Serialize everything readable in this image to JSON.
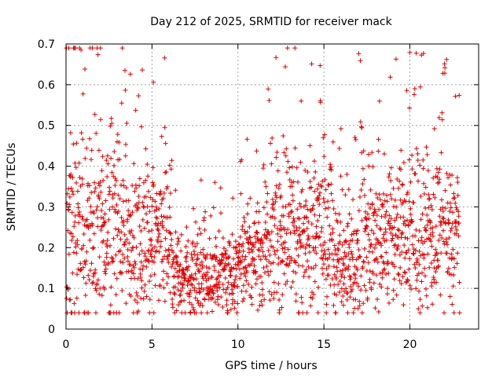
{
  "chart_data": {
    "type": "scatter",
    "title": "Day 212 of 2025, SRMTID for receiver mack",
    "xlabel": "GPS time / hours",
    "ylabel": "SRMTID / TECUs",
    "xlim": [
      0,
      24
    ],
    "ylim": [
      0,
      0.7
    ],
    "xticks": [
      0,
      5,
      10,
      15,
      20
    ],
    "xtick_labels": [
      "0",
      "5",
      "10",
      "15",
      "20"
    ],
    "yticks": [
      0,
      0.1,
      0.2,
      0.3,
      0.4,
      0.5,
      0.6,
      0.7
    ],
    "ytick_labels": [
      "0",
      "0.1",
      "0.2",
      "0.3",
      "0.4",
      "0.5",
      "0.6",
      "0.7"
    ],
    "grid": true,
    "marker": "+",
    "color": "#e00000",
    "series": [
      {
        "name": "SRMTID",
        "x": [
          0.05,
          0.1,
          0.15,
          0.2,
          0.25,
          0.3,
          0.35,
          0.4,
          0.45,
          0.5,
          0.55,
          0.6,
          0.65,
          0.7,
          0.75,
          0.8,
          0.85,
          0.9,
          0.95,
          1.0,
          1.05,
          1.1,
          1.15,
          1.2,
          1.25,
          1.3,
          1.35,
          1.4,
          1.45,
          1.5,
          1.55,
          1.6,
          1.65,
          1.7,
          1.75,
          1.8,
          1.85,
          1.9,
          1.95,
          2.0,
          2.05,
          2.1,
          2.15,
          2.2,
          2.25,
          2.3,
          2.35,
          2.4,
          2.45,
          2.5,
          2.55,
          2.6,
          2.65,
          2.7,
          2.75,
          2.8,
          2.85,
          2.9,
          2.95,
          3.0,
          3.05,
          3.1,
          3.15,
          3.2,
          3.25,
          3.3,
          3.35,
          3.4,
          3.45,
          3.5,
          3.55,
          3.6,
          3.65,
          3.7,
          3.75,
          3.8,
          3.85,
          3.9,
          3.95,
          4.0,
          4.05,
          4.1,
          4.15,
          4.2,
          4.25,
          4.3,
          4.35,
          4.4,
          4.45,
          4.5,
          4.55,
          4.6,
          4.65,
          4.7,
          4.75,
          4.8,
          4.85,
          4.9,
          4.95,
          5.0,
          5.05,
          5.1,
          5.15,
          5.2,
          5.25,
          5.3,
          5.35,
          5.4,
          5.45,
          5.5,
          5.55,
          5.6,
          5.65,
          5.7,
          5.75,
          5.8,
          5.85,
          5.9,
          5.95,
          6.0,
          6.05,
          6.1,
          6.15,
          6.2,
          6.25,
          6.3,
          6.35,
          6.4,
          6.45,
          6.5,
          6.55,
          6.6,
          6.65,
          6.7,
          6.75,
          6.8,
          6.85,
          6.9,
          6.95,
          7.0,
          7.05,
          7.1,
          7.15,
          7.2,
          7.25,
          7.3,
          7.35,
          7.4,
          7.45,
          7.5,
          7.55,
          7.6,
          7.65,
          7.7,
          7.75,
          7.8,
          7.85,
          7.9,
          7.95,
          8.0,
          8.05,
          8.1,
          8.15,
          8.2,
          8.25,
          8.3,
          8.35,
          8.4,
          8.45,
          8.5,
          8.55,
          8.6,
          8.65,
          8.7,
          8.75,
          8.8,
          8.85,
          8.9,
          8.95,
          9.0,
          9.05,
          9.1,
          9.15,
          9.2,
          9.25,
          9.3,
          9.35,
          9.4,
          9.45,
          9.5,
          9.55,
          9.6,
          9.65,
          9.7,
          9.75,
          9.8,
          9.85,
          9.9,
          9.95,
          10.0,
          10.05,
          10.1,
          10.15,
          10.2,
          10.25,
          10.3,
          10.35,
          10.4,
          10.45,
          10.5,
          10.55,
          10.6,
          10.65,
          10.7,
          10.75,
          10.8,
          10.85,
          10.9,
          10.95,
          11.0,
          11.05,
          11.1,
          11.15,
          11.2,
          11.25,
          11.3,
          11.35,
          11.4,
          11.45,
          11.5,
          11.55,
          11.6,
          11.65,
          11.7,
          11.75,
          11.8,
          11.85,
          11.9,
          11.95,
          12.0,
          12.05,
          12.1,
          12.15,
          12.2,
          12.25,
          12.3,
          12.35,
          12.4,
          12.45,
          12.5,
          12.55,
          12.6,
          12.65,
          12.7,
          12.75,
          12.8,
          12.85,
          12.9,
          12.95,
          13.0,
          13.05,
          13.1,
          13.15,
          13.2,
          13.25,
          13.3,
          13.35,
          13.4,
          13.45,
          13.5,
          13.55,
          13.6,
          13.65,
          13.7,
          13.75,
          13.8,
          13.85,
          13.9,
          13.95,
          14.0,
          14.05,
          14.1,
          14.15,
          14.2,
          14.25,
          14.3,
          14.35,
          14.4,
          14.45,
          14.5,
          14.55,
          14.6,
          14.65,
          14.7,
          14.75,
          14.8,
          14.85,
          14.9,
          14.95,
          15.0,
          15.05,
          15.1,
          15.15,
          15.2,
          15.25,
          15.3,
          15.35,
          15.4,
          15.45,
          15.5,
          15.55,
          15.6,
          15.65,
          15.7,
          15.75,
          15.8,
          15.85,
          15.9,
          15.95,
          16.0,
          16.05,
          16.1,
          16.15,
          16.2,
          16.25,
          16.3,
          16.35,
          16.4,
          16.45,
          16.5,
          16.55,
          16.6,
          16.65,
          16.7,
          16.75,
          16.8,
          16.85,
          16.9,
          16.95,
          17.0,
          17.05,
          17.1,
          17.15,
          17.2,
          17.25,
          17.3,
          17.35,
          17.4,
          17.45,
          17.5,
          17.55,
          17.6,
          17.65,
          17.7,
          17.75,
          17.8,
          17.85,
          17.9,
          17.95,
          18.0,
          18.05,
          18.1,
          18.15,
          18.2,
          18.25,
          18.3,
          18.35,
          18.4,
          18.45,
          18.5,
          18.55,
          18.6,
          18.65,
          18.7,
          18.75,
          18.8,
          18.85,
          18.9,
          18.95,
          19.0,
          19.05,
          19.1,
          19.15,
          19.2,
          19.25,
          19.3,
          19.35,
          19.4,
          19.45,
          19.5,
          19.55,
          19.6,
          19.65,
          19.7,
          19.75,
          19.8,
          19.85,
          19.9,
          19.95,
          20.0,
          20.05,
          20.1,
          20.15,
          20.2,
          20.25,
          20.3,
          20.35,
          20.4,
          20.45,
          20.5,
          20.55,
          20.6,
          20.65,
          20.7,
          20.75,
          20.8,
          20.85,
          20.9,
          20.95,
          21.0,
          21.05,
          21.1,
          21.15,
          21.2,
          21.25,
          21.3,
          21.35,
          21.4,
          21.45,
          21.5,
          21.55,
          21.6,
          21.65,
          21.7,
          21.75,
          21.8,
          21.85,
          21.9,
          21.95,
          22.0,
          22.05,
          22.1,
          22.15,
          22.2,
          22.25,
          22.3,
          22.35,
          22.4,
          22.45,
          22.5,
          22.55,
          22.6,
          22.65,
          22.7,
          22.75,
          22.8,
          0.12,
          0.22,
          0.3,
          0.45,
          0.58,
          0.62,
          0.5,
          0.47,
          0.4,
          0.38,
          0.44,
          0.33,
          0.52,
          0.65,
          0.7,
          0.68,
          0.6,
          0.55,
          0.5,
          0.43,
          0.68,
          0.66,
          0.59,
          0.54,
          0.41,
          0.34,
          0.3,
          0.26,
          0.45,
          0.42,
          0.4,
          0.35,
          0.29,
          0.33,
          0.28,
          0.25,
          0.46,
          0.44,
          0.43,
          0.41,
          0.38,
          0.36,
          0.5,
          0.48,
          0.45,
          0.3,
          0.26,
          0.22,
          0.2,
          0.32,
          0.3,
          0.28,
          0.22,
          0.18,
          0.3,
          0.28,
          0.25,
          0.2,
          0.16,
          0.22,
          0.19,
          0.14,
          0.11,
          0.1,
          0.13,
          0.1,
          0.08,
          0.05,
          0.09,
          0.07,
          0.06,
          0.04,
          0.06,
          0.08,
          0.1,
          0.12,
          0.14,
          0.16,
          0.18,
          0.2,
          0.22,
          0.24,
          0.15,
          0.13,
          0.12,
          0.11,
          0.14,
          0.16,
          0.18,
          0.2,
          0.22,
          0.24,
          0.26,
          0.28,
          0.3,
          0.27,
          0.25,
          0.23,
          0.2,
          0.18,
          0.17,
          0.15,
          0.14,
          0.13,
          0.15,
          0.17,
          0.19,
          0.21,
          0.23,
          0.25,
          0.27,
          0.29,
          0.31,
          0.33,
          0.35,
          0.37,
          0.39,
          0.41,
          0.46,
          0.5,
          0.58,
          0.63,
          0.56,
          0.53,
          0.5,
          0.47,
          0.44,
          0.41,
          0.38,
          0.35,
          0.32,
          0.29,
          0.26,
          0.23,
          0.2,
          0.17,
          0.14,
          0.11,
          0.08,
          0.06,
          0.09,
          0.12,
          0.15,
          0.18,
          0.21,
          0.24,
          0.27,
          0.3,
          0.33,
          0.36,
          0.39,
          0.42,
          0.45,
          0.48,
          0.51,
          0.54,
          0.57,
          0.5,
          0.44,
          0.4,
          0.36,
          0.32,
          0.28,
          0.24,
          0.2,
          0.16,
          0.12,
          0.08,
          0.1,
          0.14,
          0.18,
          0.22,
          0.26,
          0.3,
          0.34,
          0.38,
          0.42,
          0.46,
          0.5,
          0.54,
          0.5,
          0.46,
          0.42,
          0.38,
          0.34,
          0.3,
          0.26,
          0.22,
          0.18,
          0.14,
          0.1,
          0.13,
          0.17,
          0.21,
          0.25,
          0.29,
          0.33,
          0.37,
          0.41,
          0.45,
          0.49,
          0.53,
          0.57,
          0.52,
          0.48,
          0.44,
          0.4,
          0.36,
          0.32,
          0.28,
          0.24,
          0.2,
          0.16,
          0.12,
          0.14,
          0.18,
          0.22,
          0.26,
          0.3,
          0.34,
          0.38,
          0.42,
          0.46,
          0.5,
          0.55,
          0.53,
          0.51,
          0.49,
          0.47,
          0.45,
          0.43,
          0.41,
          0.39,
          0.37,
          0.35,
          0.33,
          0.31,
          0.29,
          0.27,
          0.25,
          0.23,
          0.21,
          0.19,
          0.17,
          0.15,
          0.13,
          0.11,
          0.1,
          0.12,
          0.14,
          0.16,
          0.18,
          0.2,
          0.22,
          0.24,
          0.26,
          0.28,
          0.3,
          0.32,
          0.34,
          0.36,
          0.38,
          0.4,
          0.42,
          0.44,
          0.46,
          0.48,
          0.5,
          0.52,
          0.54,
          0.56,
          0.58,
          0.6,
          0.58,
          0.56,
          0.54,
          0.52,
          0.5,
          0.48,
          0.46,
          0.44,
          0.42,
          0.4,
          0.38,
          0.36,
          0.34,
          0.32,
          0.3,
          0.28,
          0.26,
          0.24,
          0.22,
          0.2,
          0.18,
          0.16,
          0.14,
          0.12,
          0.1,
          0.12,
          0.14,
          0.16,
          0.18,
          0.2,
          0.22,
          0.24,
          0.26,
          0.28,
          0.3,
          0.32,
          0.34,
          0.36,
          0.38,
          0.4,
          0.42,
          0.44,
          0.46,
          0.48,
          0.5,
          0.52,
          0.54,
          0.52,
          0.5,
          0.48,
          0.46,
          0.44,
          0.42,
          0.4,
          0.38,
          0.36,
          0.34,
          0.32,
          0.3,
          0.28,
          0.26,
          0.24,
          0.22,
          0.2,
          0.18,
          0.16,
          0.14,
          0.12,
          0.1,
          0.12,
          0.14,
          0.16,
          0.18,
          0.2,
          0.22,
          0.24,
          0.26,
          0.28,
          0.3,
          0.32,
          0.34,
          0.36,
          0.38,
          0.4,
          0.42,
          0.44,
          0.46,
          0.48,
          0.5,
          0.52,
          0.54,
          0.55,
          0.53,
          0.51,
          0.49,
          0.47,
          0.45,
          0.43,
          0.41,
          0.39,
          0.37,
          0.35,
          0.33,
          0.31,
          0.29,
          0.27,
          0.25,
          0.23,
          0.21,
          0.19,
          0.17,
          0.15,
          0.13,
          0.11,
          0.13,
          0.15,
          0.17,
          0.19,
          0.21,
          0.23,
          0.25,
          0.27,
          0.29,
          0.31,
          0.33,
          0.35,
          0.37,
          0.39,
          0.41,
          0.43,
          0.45,
          0.47,
          0.49,
          0.51,
          0.53,
          0.5,
          0.47,
          0.44,
          0.41,
          0.38,
          0.35,
          0.32,
          0.29,
          0.26,
          0.23,
          0.2,
          0.17,
          0.14
        ],
        "y_note": "raw per-sample values below supersede y_sparse"
      }
    ]
  }
}
